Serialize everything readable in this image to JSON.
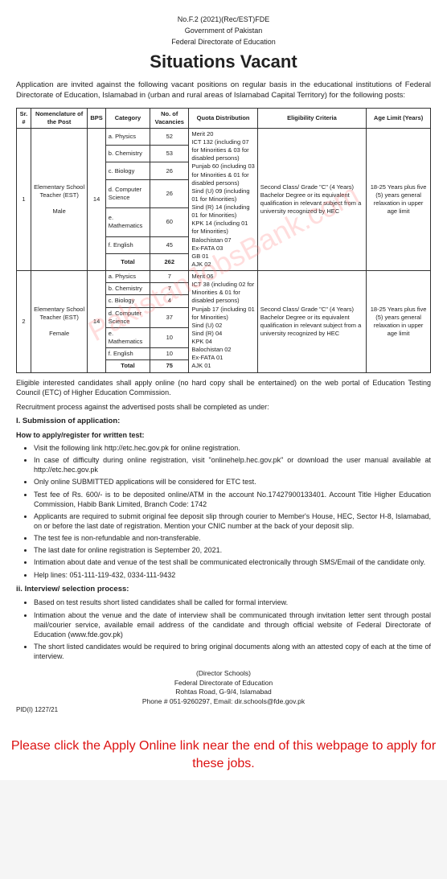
{
  "header": {
    "doc_no": "No.F.2 (2021)(Rec/EST)FDE",
    "gov": "Government of Pakistan",
    "dept": "Federal Directorate of Education",
    "title": "Situations Vacant"
  },
  "intro": "Application are invited against the following vacant positions on regular basis in the educational institutions of Federal Directorate of Education, Islamabad in (urban and rural areas of Islamabad Capital Territory) for the following posts:",
  "table": {
    "columns": [
      "Sr. #",
      "Nomenclature of the Post",
      "BPS",
      "Category",
      "No. of Vacancies",
      "Quota Distribution",
      "Eligibility Criteria",
      "Age Limit (Years)"
    ],
    "block1": {
      "sr": "1",
      "post": "Elementary School Teacher (EST)",
      "gender": "Male",
      "bps": "14",
      "cats": [
        {
          "label": "a. Physics",
          "vac": "52"
        },
        {
          "label": "b. Chemistry",
          "vac": "53"
        },
        {
          "label": "c. Biology",
          "vac": "26"
        },
        {
          "label": "d. Computer Science",
          "vac": "26"
        },
        {
          "label": "e. Mathematics",
          "vac": "60"
        },
        {
          "label": "f. English",
          "vac": "45"
        }
      ],
      "total_label": "Total",
      "total": "262",
      "quota": "Merit 20\nICT 132 (including 07 for Minorities & 03 for disabled persons)\nPunjab 60 (including 03 for Minorities & 01 for disabled persons)\nSind (U) 09 (including 01 for Minorities)\nSind (R) 14 (including 01 for Minorities)\nKPK 14 (including 01 for Minorities)\nBalochistan 07\nEx-FATA 03\nGB 01\nAJK 02",
      "eligibility": "Second Class/ Grade \"C\" (4 Years) Bachelor Degree or its equivalent qualification in relevant subject from a university recognized by HEC",
      "age": "18-25 Years plus five (5) years general relaxation in upper age limit"
    },
    "block2": {
      "sr": "2",
      "post": "Elementary School Teacher (EST)",
      "gender": "Female",
      "bps": "14",
      "cats": [
        {
          "label": "a. Physics",
          "vac": "7"
        },
        {
          "label": "b. Chemistry",
          "vac": "7"
        },
        {
          "label": "c. Biology",
          "vac": "4"
        },
        {
          "label": "d. Computer Science",
          "vac": "37"
        },
        {
          "label": "e. Mathematics",
          "vac": "10"
        },
        {
          "label": "f. English",
          "vac": "10"
        }
      ],
      "total_label": "Total",
      "total": "75",
      "quota": "Merit 06\nICT 38 (including 02 for Minorities & 01 for disabled persons)\nPunjab 17 (including 01 for Minorities)\nSind (U) 02\nSind (R) 04\nKPK 04\nBalochistan 02\nEx-FATA 01\nAJK 01",
      "eligibility": "Second Class/ Grade \"C\" (4 Years) Bachelor Degree or its equivalent qualification in relevant subject from a university recognized by HEC",
      "age": "18-25 Years plus five (5) years general relaxation in upper age limit"
    }
  },
  "para1": "Eligible interested candidates shall apply online (no hard copy shall be entertained) on the web portal of Education Testing Council (ETC) of Higher Education Commission.",
  "para2": "Recruitment process against the advertised posts shall be completed as under:",
  "section1": {
    "num": "I.",
    "head": "Submission of application:",
    "sub_head": "How to apply/register for written test:",
    "bullets": [
      "Visit the following link http://etc.hec.gov.pk for online registration.",
      "In case of difficulty during online registration, visit \"onlinehelp.hec.gov.pk\" or download the user manual available at http://etc.hec.gov.pk",
      "Only online SUBMITTED applications will be considered for ETC test.",
      "Test fee of Rs. 600/- is to be deposited online/ATM in the account No.17427900133401. Account Title Higher Education Commission, Habib Bank Limited, Branch Code: 1742",
      "Applicants are required to submit original fee deposit slip through courier to Member's House, HEC, Sector H-8, Islamabad, on or before the last date of registration. Mention your CNIC number at the back of your deposit slip.",
      "The test fee is non-refundable and non-transferable.",
      "The last date for online registration is September 20, 2021.",
      "Intimation about date and venue of the test shall be communicated electronically through SMS/Email of the candidate only.",
      "Help lines: 051-111-119-432, 0334-111-9432"
    ]
  },
  "section2": {
    "num": "ii.",
    "head": "Interview/ selection process:",
    "bullets": [
      "Based on test results short listed candidates shall be called for formal interview.",
      "Intimation about the venue and the date of interview shall be communicated through invitation letter sent through postal mail/courier service, available email address of the candidate and through official website of Federal Directorate of Education (www.fde.gov.pk)",
      "The short listed candidates would be required to bring original documents along with an attested copy of each at the time of interview."
    ]
  },
  "footer": {
    "signer": "(Director Schools)",
    "org": "Federal Directorate of Education",
    "addr": "Rohtas Road, G-9/4, Islamabad",
    "contact": "Phone # 051-9260297, Email: dir.schools@fde.gov.pk",
    "pid": "PID(I) 1227/21"
  },
  "apply_banner": "Please click the Apply Online link near the end of this webpage to apply for these jobs.",
  "watermark": "PakistanJobsBank.com"
}
